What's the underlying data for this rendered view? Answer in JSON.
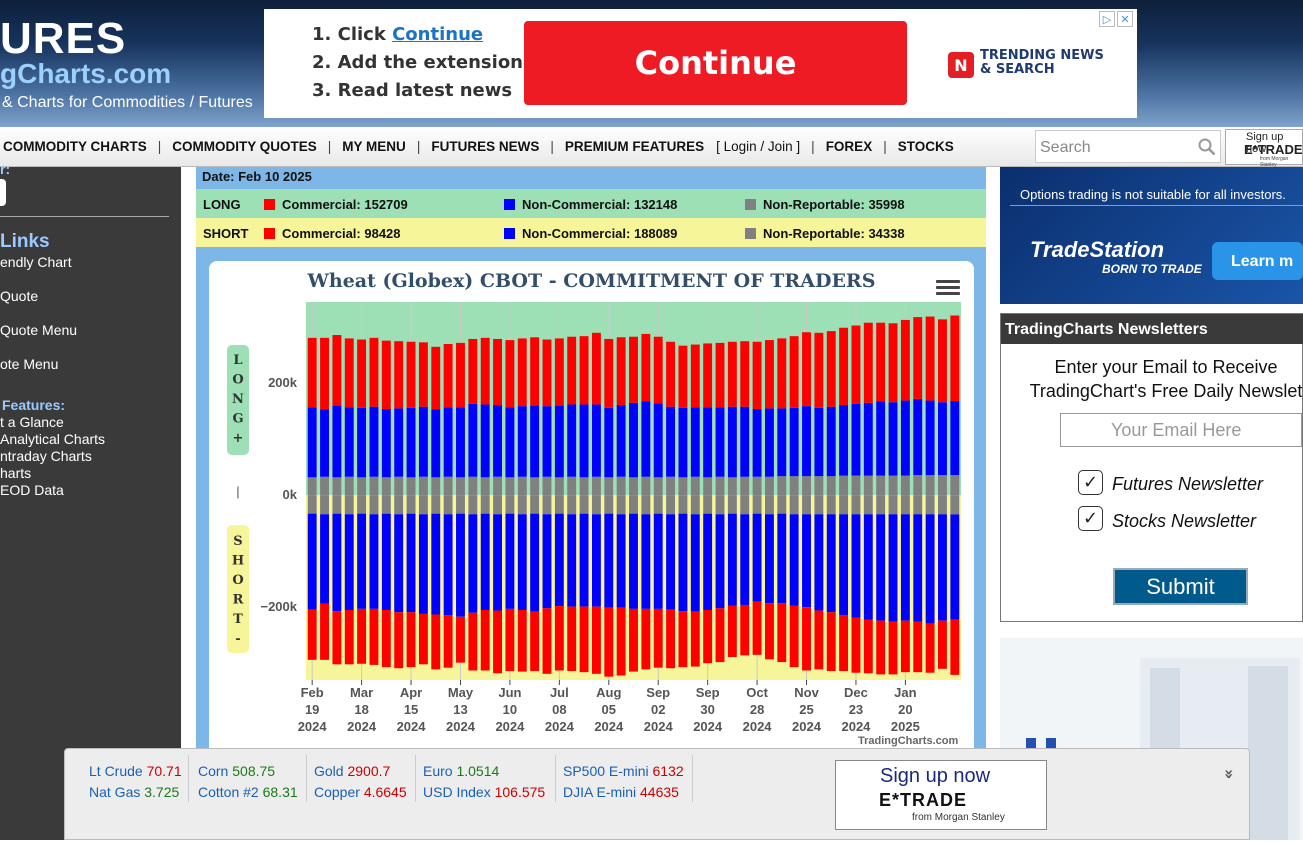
{
  "header": {
    "title": "URES",
    "domain": "gCharts.com",
    "tagline": "& Charts for Commodities / Futures"
  },
  "top_ad": {
    "step1_prefix": "1. Click ",
    "step1_link": "Continue",
    "step2": "2. Add the extension",
    "step3": "3. Read latest news",
    "button": "Continue",
    "brand_mark": "N",
    "brand_line1": "TRENDING NEWS",
    "brand_line2": "& SEARCH",
    "adchoices_icon": "▷",
    "close_icon": "✕"
  },
  "nav": {
    "items": [
      "COMMODITY CHARTS",
      "COMMODITY QUOTES",
      "MY MENU",
      "FUTURES NEWS",
      "PREMIUM FEATURES",
      "[ Login / Join ]",
      "FOREX",
      "STOCKS"
    ],
    "search_placeholder": "Search"
  },
  "etrade_small": {
    "line1": "Sign up now",
    "line2": "E*TRADE",
    "line3": "from Morgan Stanley"
  },
  "sidebar": {
    "top_fragment": "r:",
    "links_heading": "Links",
    "links": [
      "endly Chart",
      "Quote",
      "Quote Menu",
      "ote Menu"
    ],
    "features_heading": "Features:",
    "features": [
      "t a Glance",
      " Analytical Charts",
      "ntraday Charts",
      "harts",
      " EOD Data"
    ]
  },
  "cot": {
    "date": "Date: Feb 10 2025",
    "long_label": "LONG",
    "short_label": "SHORT",
    "long": {
      "commercial": "Commercial: 152709",
      "noncommercial": "Non-Commercial: 132148",
      "nonreportable": "Non-Reportable: 35998"
    },
    "short": {
      "commercial": "Commercial: 98428",
      "noncommercial": "Non-Commercial: 188089",
      "nonreportable": "Non-Reportable: 34338"
    },
    "colors": {
      "commercial": "#ff0000",
      "noncommercial": "#0000ff",
      "nonreportable": "#808080",
      "long_bg": "#9ee0b5",
      "short_bg": "#f6f59a"
    }
  },
  "chart_title": "Wheat (Globex) CBOT - COMMITMENT OF TRADERS",
  "chart_credit": "TradingCharts.com",
  "chart_data": {
    "type": "bar",
    "title": "Wheat (Globex) CBOT - COMMITMENT OF TRADERS",
    "long_label": "LONG +",
    "short_label": "SHORT -",
    "ylabel_divider": "|",
    "y_ticks": [
      {
        "value": 200000,
        "label": "200k"
      },
      {
        "value": 0,
        "label": "0k"
      },
      {
        "value": -200000,
        "label": "−200k"
      }
    ],
    "ylim": [
      -330000,
      345000
    ],
    "x_ticks": [
      {
        "index": 0,
        "label": [
          "Feb",
          "19",
          "2024"
        ]
      },
      {
        "index": 4,
        "label": [
          "Mar",
          "18",
          "2024"
        ]
      },
      {
        "index": 8,
        "label": [
          "Apr",
          "15",
          "2024"
        ]
      },
      {
        "index": 12,
        "label": [
          "May",
          "13",
          "2024"
        ]
      },
      {
        "index": 16,
        "label": [
          "Jun",
          "10",
          "2024"
        ]
      },
      {
        "index": 20,
        "label": [
          "Jul",
          "08",
          "2024"
        ]
      },
      {
        "index": 24,
        "label": [
          "Aug",
          "05",
          "2024"
        ]
      },
      {
        "index": 28,
        "label": [
          "Sep",
          "02",
          "2024"
        ]
      },
      {
        "index": 32,
        "label": [
          "Sep",
          "30",
          "2024"
        ]
      },
      {
        "index": 36,
        "label": [
          "Oct",
          "28",
          "2024"
        ]
      },
      {
        "index": 40,
        "label": [
          "Nov",
          "25",
          "2024"
        ]
      },
      {
        "index": 44,
        "label": [
          "Dec",
          "23",
          "2024"
        ]
      },
      {
        "index": 48,
        "label": [
          "Jan",
          "20",
          "2025"
        ]
      }
    ],
    "series": [
      {
        "name": "Commercial",
        "side": "long",
        "values": [
          124000,
          128000,
          126000,
          123000,
          122000,
          123000,
          122000,
          120000,
          118000,
          115000,
          112000,
          113000,
          115000,
          116000,
          119000,
          118000,
          120000,
          121000,
          122000,
          119000,
          120000,
          121000,
          122000,
          128000,
          123000,
          121000,
          118000,
          120000,
          119000,
          116000,
          111000,
          112000,
          114000,
          115000,
          116000,
          117000,
          120000,
          122000,
          125000,
          128000,
          132000,
          134000,
          135000,
          138000,
          140000,
          143000,
          140000,
          141000,
          144000,
          146000,
          150000,
          148000,
          152709
        ]
      },
      {
        "name": "Non-Commercial",
        "side": "long",
        "values": [
          125000,
          120000,
          128000,
          124000,
          124000,
          125000,
          122000,
          122000,
          124000,
          125000,
          121000,
          124000,
          125000,
          130000,
          130000,
          128000,
          125000,
          126000,
          128000,
          126000,
          128000,
          129000,
          130000,
          129000,
          124000,
          128000,
          133000,
          135000,
          132000,
          125000,
          124000,
          124000,
          125000,
          124000,
          126000,
          125000,
          121000,
          122000,
          121000,
          122000,
          125000,
          122000,
          124000,
          126000,
          128000,
          130000,
          133000,
          131000,
          134000,
          136000,
          133000,
          130000,
          132148
        ]
      },
      {
        "name": "Non-Reportable",
        "side": "long",
        "values": [
          32000,
          33000,
          32000,
          33000,
          32000,
          33000,
          32000,
          33000,
          32000,
          33000,
          32000,
          33000,
          32000,
          33000,
          32000,
          33000,
          32000,
          33000,
          32000,
          33000,
          32000,
          33000,
          32000,
          33000,
          32000,
          33000,
          32000,
          33000,
          32000,
          33000,
          32000,
          33000,
          32000,
          33000,
          32000,
          33000,
          33000,
          33000,
          34000,
          34000,
          34000,
          34000,
          34000,
          35000,
          35000,
          35000,
          35000,
          35000,
          35000,
          36000,
          36000,
          36000,
          35998
        ]
      },
      {
        "name": "Commercial",
        "side": "short",
        "values": [
          90000,
          100000,
          95000,
          97000,
          98000,
          100000,
          102000,
          100000,
          98000,
          90000,
          98000,
          94000,
          82000,
          103000,
          108000,
          112000,
          111000,
          110000,
          106000,
          117000,
          115000,
          115000,
          117000,
          120000,
          123000,
          121000,
          112000,
          108000,
          105000,
          105000,
          100000,
          98000,
          95000,
          96000,
          92000,
          90000,
          95000,
          100000,
          105000,
          110000,
          113000,
          105000,
          105000,
          100000,
          98000,
          96000,
          96000,
          94000,
          92000,
          90000,
          88000,
          86000,
          98428
        ]
      },
      {
        "name": "Non-Commercial",
        "side": "short",
        "values": [
          171000,
          160000,
          174000,
          171000,
          170000,
          169000,
          172000,
          175000,
          176000,
          178000,
          180000,
          180000,
          184000,
          176000,
          172000,
          172000,
          170000,
          171000,
          175000,
          168000,
          165000,
          165000,
          166000,
          165000,
          168000,
          167000,
          170000,
          169000,
          170000,
          170000,
          174000,
          174000,
          172000,
          168000,
          164000,
          162000,
          157000,
          159000,
          160000,
          163000,
          166000,
          172000,
          175000,
          180000,
          185000,
          188000,
          190000,
          192000,
          190000,
          192000,
          195000,
          190000,
          188089
        ]
      },
      {
        "name": "Non-Reportable",
        "side": "short",
        "values": [
          33000,
          34000,
          33000,
          34000,
          33000,
          34000,
          33000,
          34000,
          33000,
          34000,
          33000,
          34000,
          33000,
          34000,
          33000,
          34000,
          33000,
          34000,
          33000,
          34000,
          33000,
          34000,
          33000,
          34000,
          33000,
          34000,
          33000,
          34000,
          33000,
          34000,
          33000,
          34000,
          33000,
          34000,
          33000,
          34000,
          33000,
          34000,
          33000,
          34000,
          34000,
          34000,
          34000,
          34000,
          34000,
          34000,
          34000,
          34000,
          34000,
          34000,
          34000,
          34000,
          34338
        ]
      }
    ]
  },
  "right_ad": {
    "disclaimer": "Options trading is not suitable for all investors.",
    "brand": "TradeStation",
    "slogan": "BORN TO TRADE",
    "button": "Learn m"
  },
  "newsletter": {
    "heading": "TradingCharts Newsletters",
    "text_line1": "Enter your Email to Receive",
    "text_line2": "TradingChart's Free Daily Newslet",
    "email_placeholder": "Your Email Here",
    "option1": "Futures Newsletter",
    "option2": "Stocks Newsletter",
    "checkmark": "✓",
    "submit": "Submit"
  },
  "ticker": [
    {
      "name": "Lt Crude",
      "value": "70.71",
      "dir": "down"
    },
    {
      "name": "Nat Gas",
      "value": "3.725",
      "dir": "up"
    },
    {
      "name": "Corn",
      "value": "508.75",
      "dir": "up"
    },
    {
      "name": "Cotton #2",
      "value": "68.31",
      "dir": "up"
    },
    {
      "name": "Gold",
      "value": "2900.7",
      "dir": "down"
    },
    {
      "name": "Copper",
      "value": "4.6645",
      "dir": "down"
    },
    {
      "name": "Euro",
      "value": "1.0514",
      "dir": "up"
    },
    {
      "name": "USD Index",
      "value": "106.575",
      "dir": "down"
    },
    {
      "name": "SP500 E-mini",
      "value": "6132",
      "dir": "down"
    },
    {
      "name": "DJIA E-mini",
      "value": "44635",
      "dir": "down"
    }
  ],
  "etrade_big": {
    "line1": "Sign up now",
    "line2": "E*TRADE",
    "line3": "from Morgan Stanley"
  },
  "collapse_icon": "»"
}
